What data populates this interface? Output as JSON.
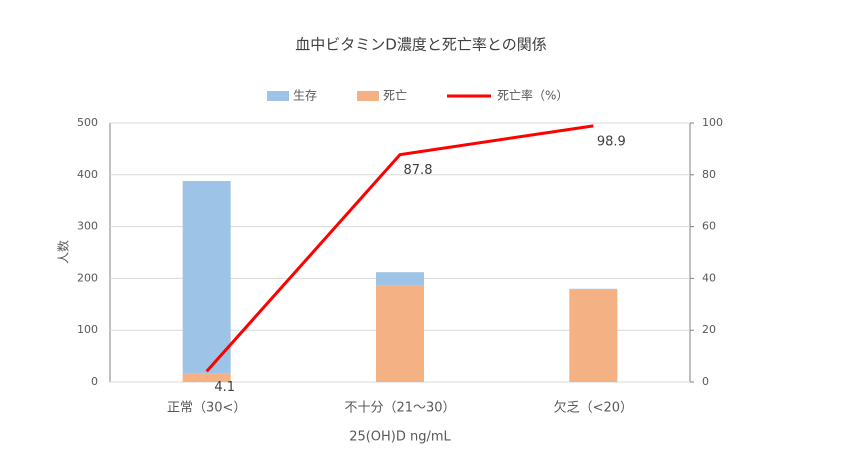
{
  "chart_data": {
    "type": "bar",
    "stacked": true,
    "title": "血中ビタミンD濃度と死亡率との関係",
    "x_label": "25(OH)D ng/mL",
    "y_label": "人数",
    "categories": [
      "正常（30<）",
      "不十分（21～30）",
      "欠乏（<20）"
    ],
    "series": [
      {
        "name": "生存",
        "color": "#9dc3e6",
        "values": [
          372,
          26,
          2
        ]
      },
      {
        "name": "死亡",
        "color": "#f4b183",
        "values": [
          16,
          186,
          178
        ]
      },
      {
        "name": "死亡率（%）",
        "color": "#ff0000",
        "type": "line",
        "axis": "y2",
        "values": [
          4.1,
          87.8,
          98.9
        ]
      }
    ],
    "ylim": [
      0,
      500
    ],
    "yticks": [
      0,
      100,
      200,
      300,
      400,
      500
    ],
    "y2lim": [
      0,
      100
    ],
    "y2ticks": [
      0,
      20,
      40,
      60,
      80,
      100
    ],
    "grid": true,
    "legend": "top"
  }
}
